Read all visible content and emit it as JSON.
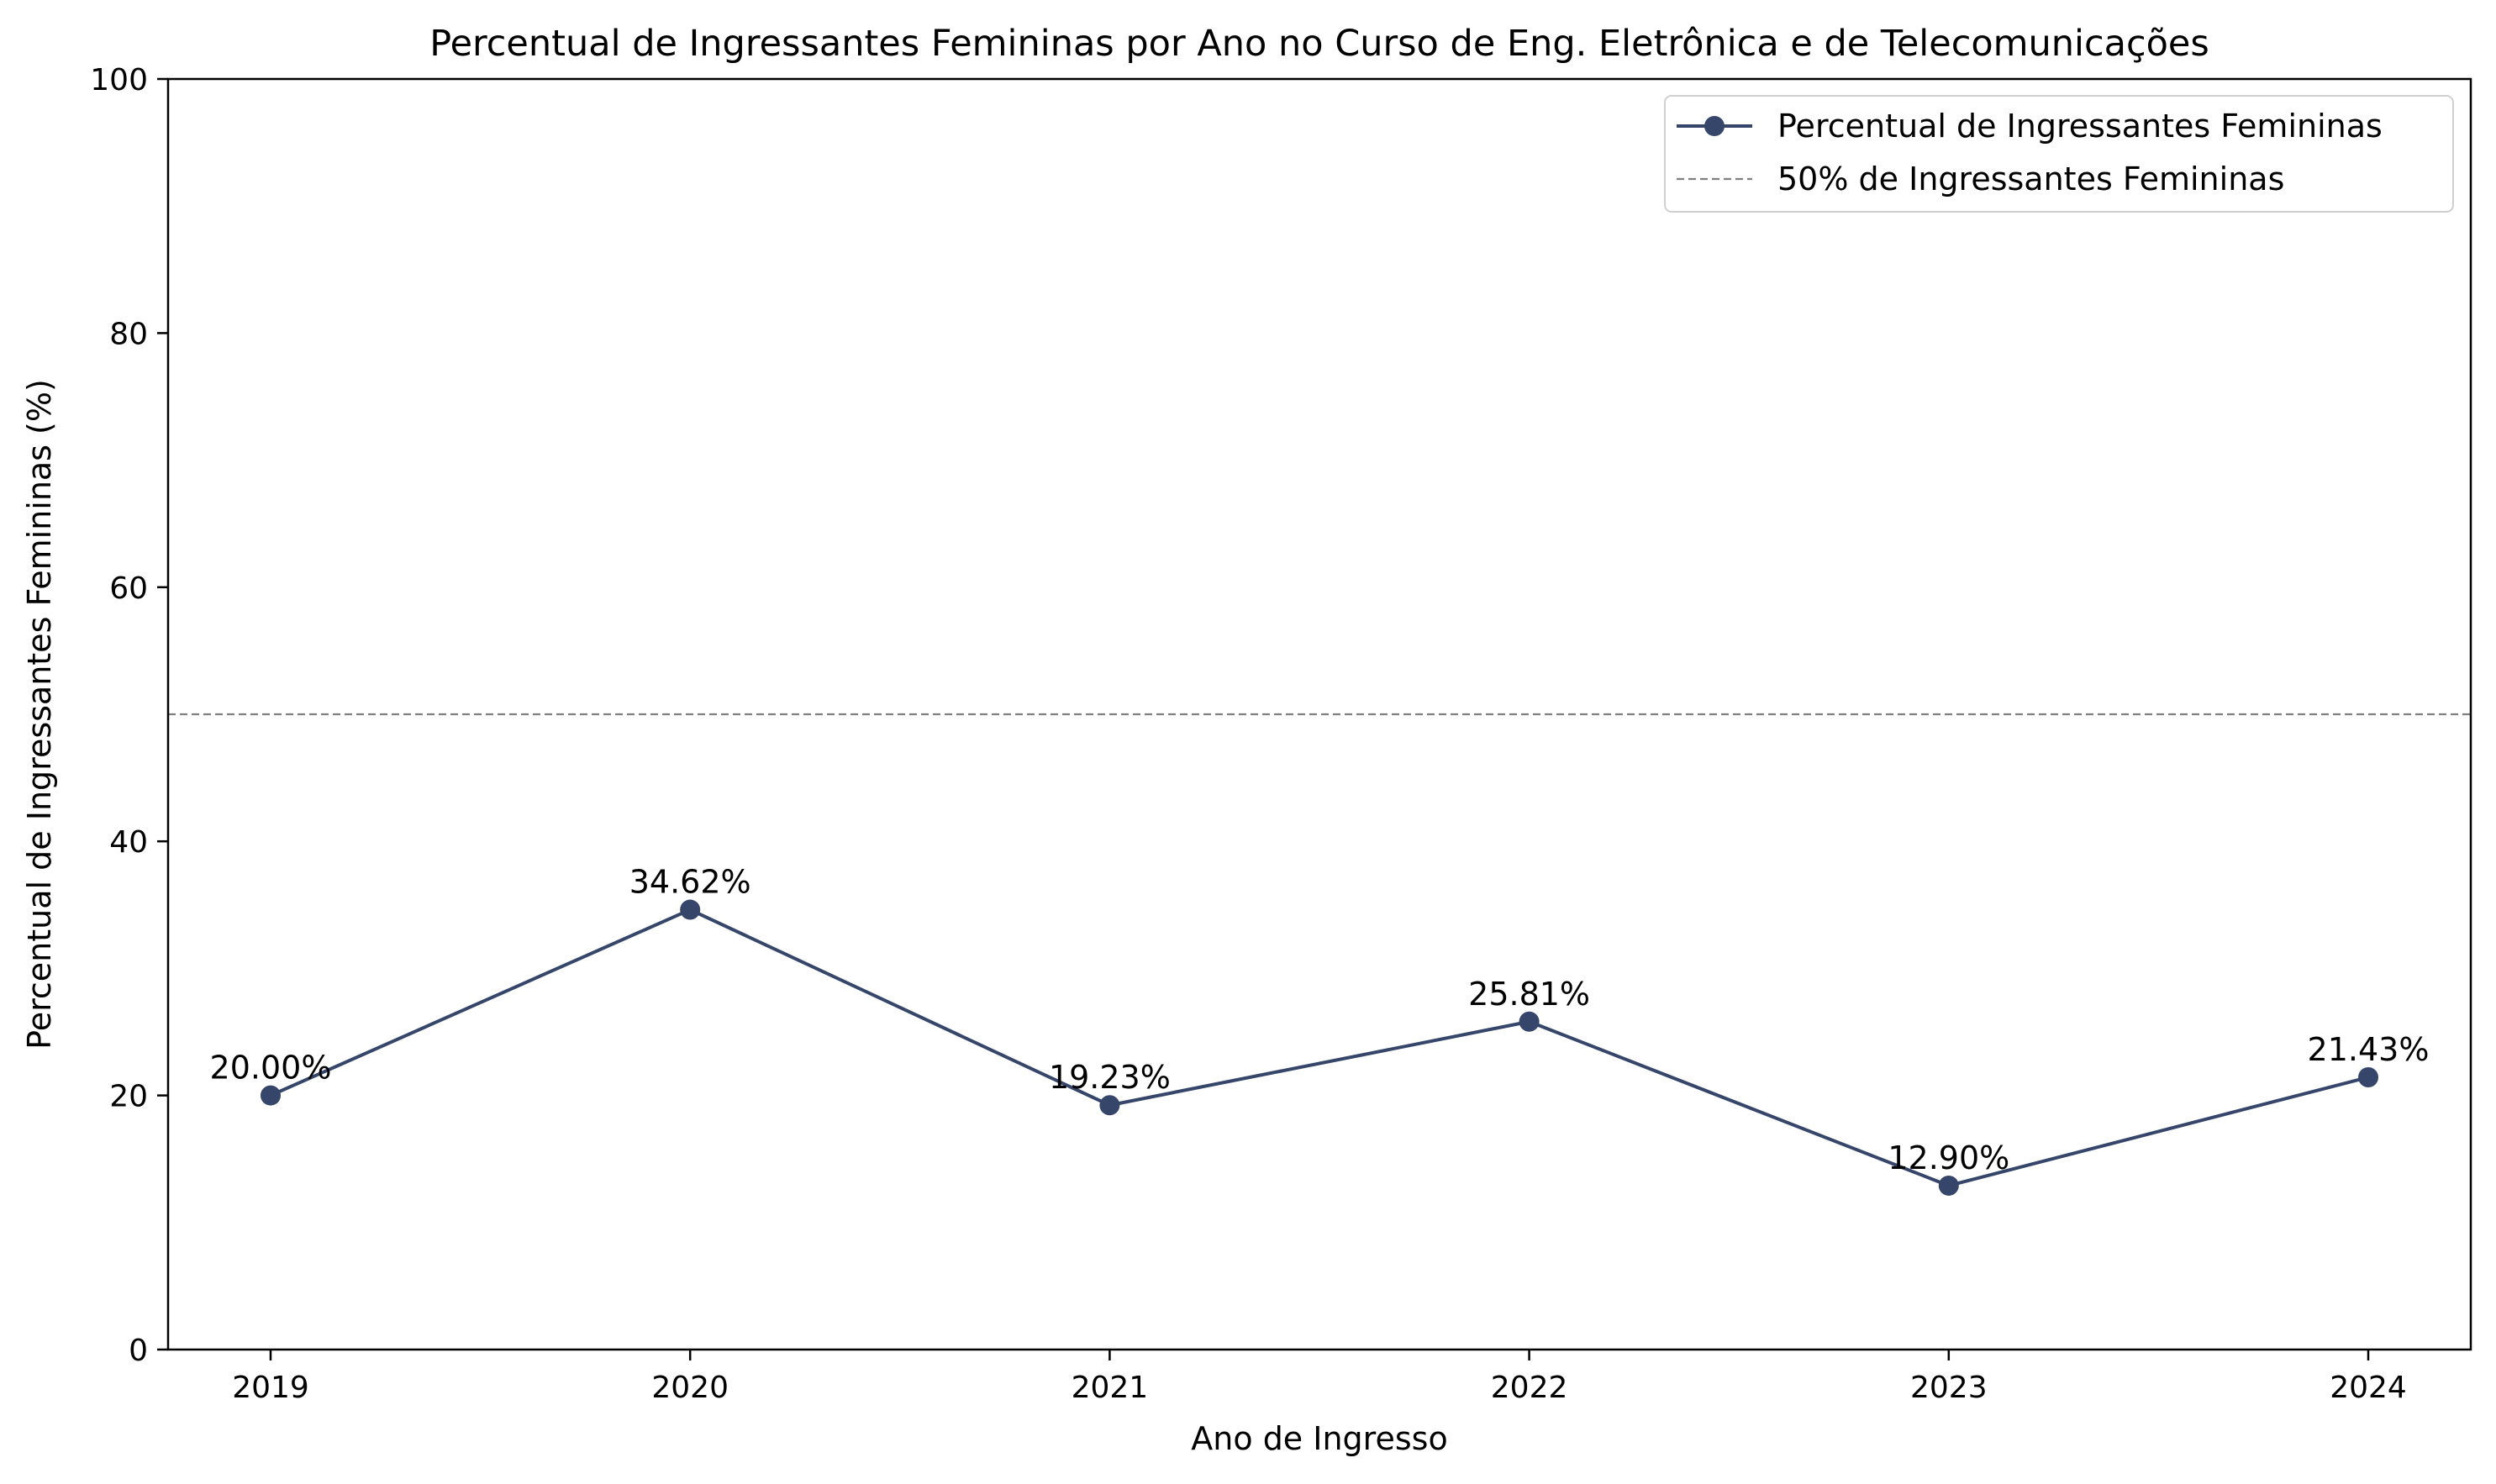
{
  "chart_data": {
    "type": "line",
    "title": "Percentual de Ingressantes Femininas por Ano no Curso de Eng. Eletrônica e de Telecomunicações",
    "xlabel": "Ano de Ingresso",
    "ylabel": "Percentual de Ingressantes Femininas (%)",
    "x": [
      "2019",
      "2020",
      "2021",
      "2022",
      "2023",
      "2024"
    ],
    "ylim": [
      0,
      100
    ],
    "yticks": [
      0,
      20,
      40,
      60,
      80,
      100
    ],
    "grid": false,
    "legend_position": "top-right",
    "series": [
      {
        "name": "Percentual de Ingressantes Femininas",
        "values": [
          20.0,
          34.62,
          19.23,
          25.81,
          12.9,
          21.43
        ],
        "labels": [
          "20.00%",
          "34.62%",
          "19.23%",
          "25.81%",
          "12.90%",
          "21.43%"
        ],
        "color": "#35466a",
        "marker": "circle"
      }
    ],
    "reference_lines": [
      {
        "name": "50% de Ingressantes Femininas",
        "value": 50,
        "style": "dashed",
        "color": "#808080"
      }
    ]
  }
}
